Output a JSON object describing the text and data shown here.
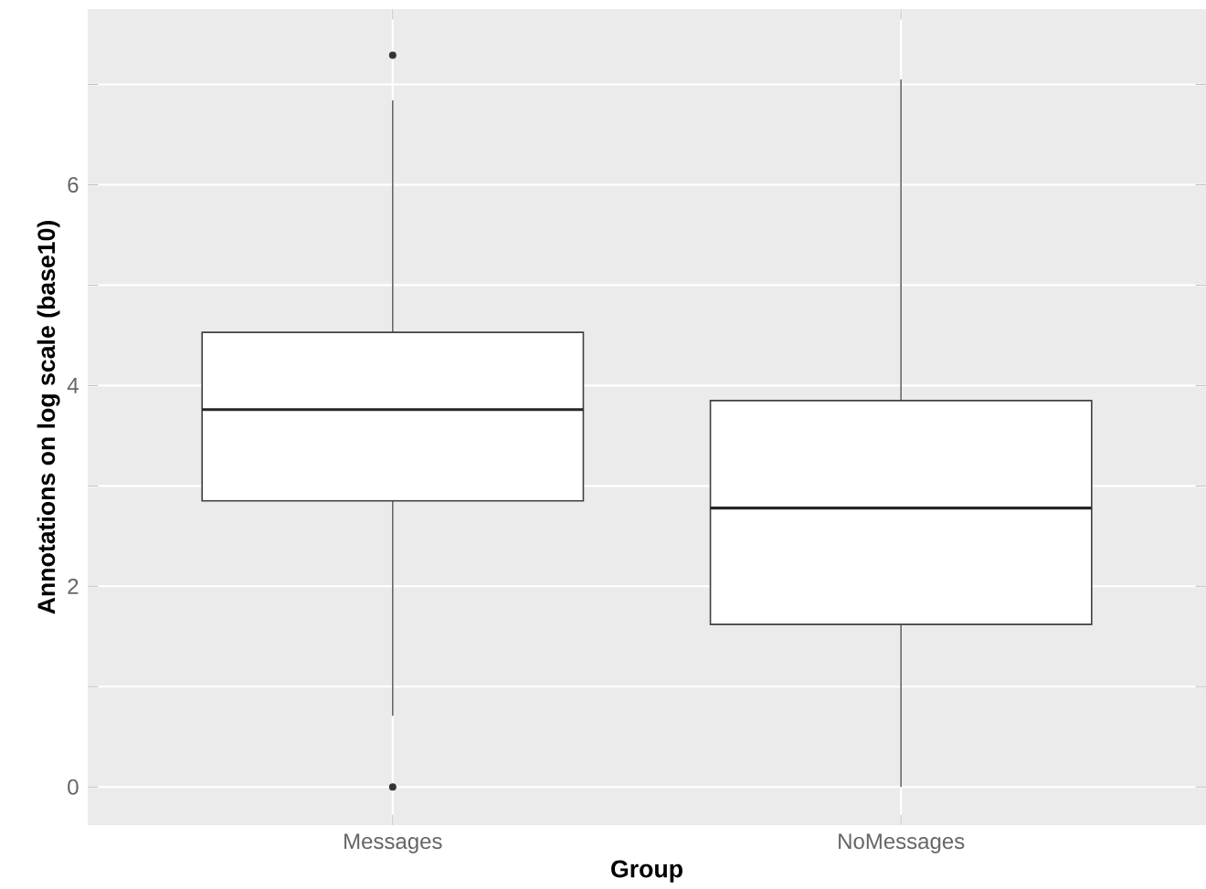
{
  "chart_data": {
    "type": "box",
    "xlabel": "Group",
    "ylabel": "Annotations on log scale (base10)",
    "categories": [
      "Messages",
      "NoMessages"
    ],
    "boxes": [
      {
        "low": 0.71,
        "q1": 2.85,
        "median": 3.76,
        "q3": 4.53,
        "high": 6.84,
        "outliers": [
          7.29,
          0
        ]
      },
      {
        "low": 0,
        "q1": 1.62,
        "median": 2.78,
        "q3": 3.85,
        "high": 7.05
      }
    ],
    "color": "#ffffff",
    "ylim": [
      -0.38,
      7.75
    ],
    "yticks": [
      0,
      {
        "value": 1,
        "label": null
      },
      2,
      {
        "value": 3,
        "label": null
      },
      4,
      {
        "value": 5,
        "label": null
      },
      6,
      {
        "value": 7,
        "label": null
      }
    ],
    "grid": true
  }
}
